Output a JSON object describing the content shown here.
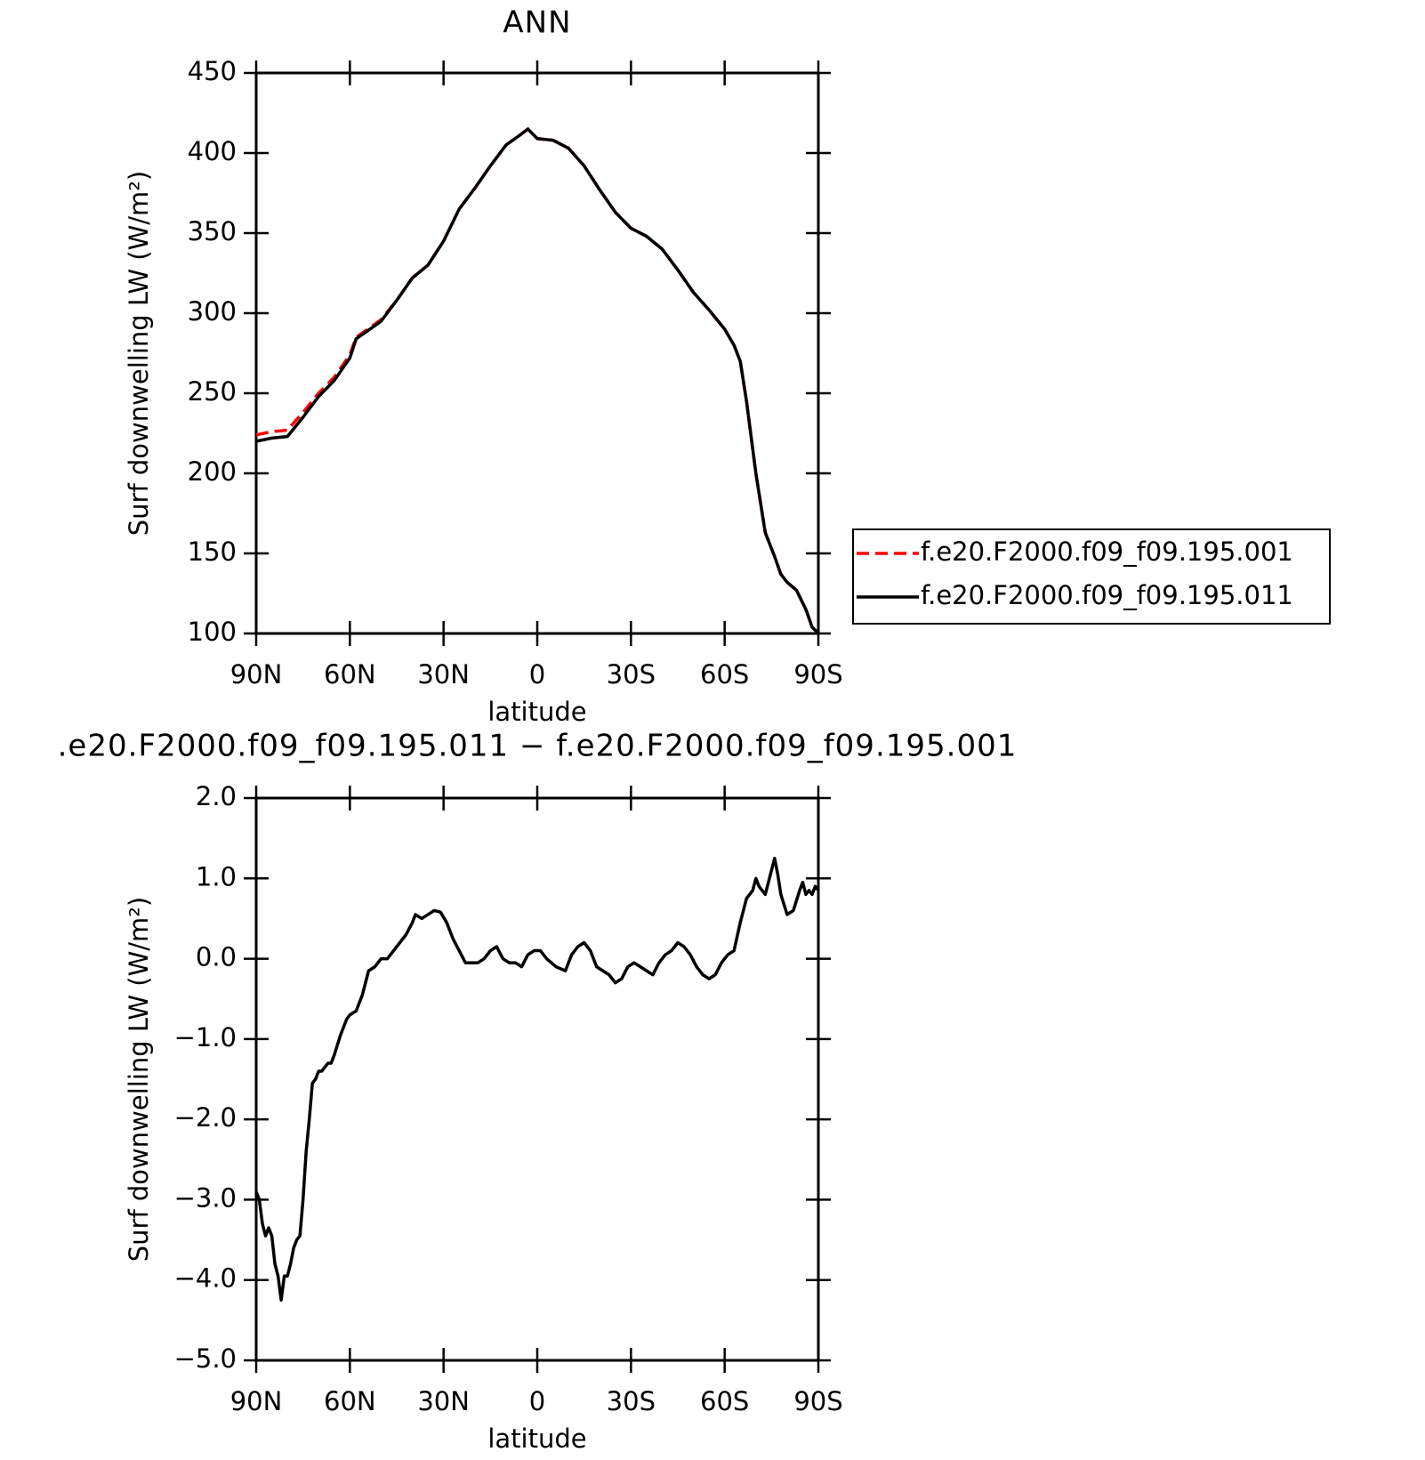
{
  "chart_data": [
    {
      "type": "line",
      "title": "ANN",
      "xlabel": "latitude",
      "ylabel": "Surf downwelling LW (W/m²)",
      "xlim": [
        90,
        -90
      ],
      "ylim": [
        100,
        450
      ],
      "xticks": [
        {
          "value": 90,
          "label": "90N"
        },
        {
          "value": 60,
          "label": "60N"
        },
        {
          "value": 30,
          "label": "30N"
        },
        0,
        {
          "value": -30,
          "label": "30S"
        },
        {
          "value": -60,
          "label": "60S"
        },
        {
          "value": -90,
          "label": "90S"
        }
      ],
      "yticks": [
        100,
        150,
        200,
        250,
        300,
        350,
        400,
        450
      ],
      "legend": "outside-right",
      "x": [
        90,
        85,
        80,
        75,
        70,
        65,
        60,
        58,
        55,
        50,
        45,
        40,
        35,
        30,
        25,
        20,
        15,
        10,
        5,
        3,
        0,
        -5,
        -10,
        -15,
        -20,
        -25,
        -30,
        -35,
        -40,
        -45,
        -50,
        -55,
        -60,
        -63,
        -65,
        -67,
        -70,
        -73,
        -76,
        -78,
        -80,
        -83,
        -86,
        -88,
        -90
      ],
      "series": [
        {
          "name": "f.e20.F2000.f09_f09.195.001",
          "color": "#ff0000",
          "style": "dashed",
          "values": [
            224,
            226,
            227,
            238,
            250,
            260,
            274,
            285,
            289,
            296,
            308,
            322,
            330,
            345,
            365,
            378,
            392,
            405,
            412,
            415,
            409,
            408,
            403,
            392,
            377,
            363,
            353,
            348,
            340,
            327,
            313,
            302,
            290,
            280,
            270,
            245,
            200,
            163,
            148,
            137,
            132,
            127,
            115,
            104,
            100
          ]
        },
        {
          "name": "f.e20.F2000.f09_f09.195.011",
          "color": "#000000",
          "style": "solid",
          "values": [
            220,
            222,
            223,
            235,
            248,
            258,
            272,
            284,
            288,
            295,
            308,
            322,
            330,
            345,
            365,
            378,
            392,
            405,
            412,
            415,
            409,
            408,
            403,
            392,
            377,
            363,
            353,
            348,
            340,
            327,
            313,
            302,
            290,
            280,
            270,
            245,
            200,
            163,
            148,
            137,
            132,
            127,
            115,
            104,
            100
          ]
        }
      ]
    },
    {
      "type": "line",
      "title": ".e20.F2000.f09_f09.195.011 − f.e20.F2000.f09_f09.195.001",
      "xlabel": "latitude",
      "ylabel": "Surf downwelling LW (W/m²)",
      "xlim": [
        90,
        -90
      ],
      "ylim": [
        -5,
        2
      ],
      "xticks": [
        {
          "value": 90,
          "label": "90N"
        },
        {
          "value": 60,
          "label": "60N"
        },
        {
          "value": 30,
          "label": "30N"
        },
        0,
        {
          "value": -30,
          "label": "30S"
        },
        {
          "value": -60,
          "label": "60S"
        },
        {
          "value": -90,
          "label": "90S"
        }
      ],
      "yticks": [
        {
          "value": -5,
          "label": "−5.0"
        },
        {
          "value": -4,
          "label": "−4.0"
        },
        {
          "value": -3,
          "label": "−3.0"
        },
        {
          "value": -2,
          "label": "−2.0"
        },
        {
          "value": -1,
          "label": "−1.0"
        },
        {
          "value": 0,
          "label": "0.0"
        },
        {
          "value": 1,
          "label": "1.0"
        },
        {
          "value": 2,
          "label": "2.0"
        }
      ],
      "x": [
        90,
        89,
        88,
        87,
        86,
        85,
        84,
        83,
        82,
        81,
        80,
        79,
        78,
        77,
        76,
        75,
        74,
        73,
        72,
        71,
        70,
        69,
        68,
        67,
        66,
        65,
        63,
        61,
        60,
        58,
        56,
        54,
        52,
        50,
        48,
        46,
        44,
        42,
        40,
        39,
        37,
        35,
        33,
        31,
        29,
        27,
        25,
        23,
        21,
        19,
        17,
        15,
        13,
        11,
        9,
        7,
        5,
        3,
        1,
        -1,
        -3,
        -6,
        -9,
        -11,
        -13,
        -15,
        -17,
        -19,
        -21,
        -23,
        -25,
        -27,
        -29,
        -31,
        -33,
        -35,
        -37,
        -39,
        -41,
        -43,
        -45,
        -47,
        -49,
        -51,
        -53,
        -55,
        -57,
        -59,
        -61,
        -63,
        -65,
        -67,
        -69,
        -70,
        -71,
        -73,
        -75,
        -76,
        -77,
        -78,
        -80,
        -82,
        -84,
        -85,
        -86,
        -87,
        -88,
        -89,
        -90
      ],
      "series": [
        {
          "color": "#000000",
          "style": "solid",
          "values": [
            -2.9,
            -3.0,
            -3.3,
            -3.45,
            -3.35,
            -3.45,
            -3.8,
            -3.95,
            -4.25,
            -3.95,
            -3.95,
            -3.8,
            -3.6,
            -3.5,
            -3.45,
            -3.0,
            -2.4,
            -2.0,
            -1.55,
            -1.5,
            -1.4,
            -1.4,
            -1.35,
            -1.3,
            -1.3,
            -1.2,
            -0.95,
            -0.75,
            -0.7,
            -0.65,
            -0.45,
            -0.15,
            -0.1,
            0.0,
            0.0,
            0.1,
            0.2,
            0.3,
            0.45,
            0.55,
            0.5,
            0.55,
            0.6,
            0.58,
            0.45,
            0.25,
            0.1,
            -0.05,
            -0.05,
            -0.05,
            0.0,
            0.1,
            0.15,
            0.0,
            -0.05,
            -0.05,
            -0.1,
            0.05,
            0.1,
            0.1,
            0.0,
            -0.1,
            -0.15,
            0.05,
            0.15,
            0.2,
            0.1,
            -0.1,
            -0.15,
            -0.2,
            -0.3,
            -0.25,
            -0.1,
            -0.05,
            -0.1,
            -0.15,
            -0.2,
            -0.05,
            0.05,
            0.1,
            0.2,
            0.15,
            0.05,
            -0.1,
            -0.2,
            -0.25,
            -0.2,
            -0.05,
            0.05,
            0.1,
            0.45,
            0.75,
            0.85,
            1.0,
            0.9,
            0.8,
            1.1,
            1.25,
            1.05,
            0.8,
            0.55,
            0.6,
            0.85,
            0.95,
            0.8,
            0.85,
            0.8,
            0.9,
            0.85
          ]
        }
      ]
    }
  ]
}
